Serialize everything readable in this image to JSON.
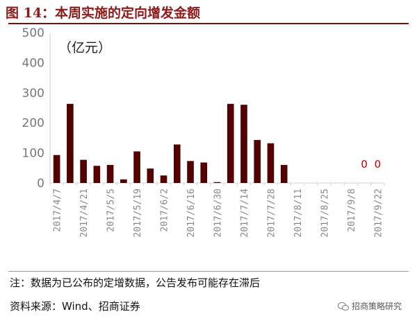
{
  "title": "图 14：本周实施的定向增发金额",
  "note": "注：数据为已公布的定增数据，公告发布可能存在滞后",
  "source": "资料来源：Wind、招商证券",
  "watermark": "招商策略研究",
  "chart_data": {
    "type": "bar",
    "unit_label": "（亿元）",
    "categories": [
      "2017/4/7",
      "2017/4/14",
      "2017/4/21",
      "2017/4/28",
      "2017/5/5",
      "2017/5/12",
      "2017/5/19",
      "2017/5/26",
      "2017/6/2",
      "2017/6/9",
      "2017/6/16",
      "2017/6/23",
      "2017/6/30",
      "2017/7/7",
      "2017/7/14",
      "2017/7/21",
      "2017/7/28",
      "2017/8/4",
      "2017/8/11",
      "2017/8/18",
      "2017/8/25",
      "2017/9/1",
      "2017/9/8",
      "2017/9/15",
      "2017/9/22"
    ],
    "tick_labels": [
      "2017/4/7",
      "2017/4/21",
      "2017/5/5",
      "2017/5/19",
      "2017/6/2",
      "2017/6/16",
      "2017/6/30",
      "2017/7/14",
      "2017/7/28",
      "2017/8/11",
      "2017/8/25",
      "2017/9/8",
      "2017/9/22"
    ],
    "values": [
      93,
      263,
      77,
      57,
      60,
      12,
      105,
      48,
      25,
      128,
      73,
      68,
      3,
      263,
      260,
      143,
      132,
      60,
      0,
      0,
      0,
      0,
      0,
      0,
      0
    ],
    "data_labels": [
      {
        "category": "2017/9/15",
        "text": "0"
      },
      {
        "category": "2017/9/22",
        "text": "0"
      }
    ],
    "yticks": [
      0,
      100,
      200,
      300,
      400,
      500
    ],
    "ylim": [
      0,
      500
    ],
    "bar_color": "#520000",
    "label_color": "#c00000",
    "grid": false
  }
}
